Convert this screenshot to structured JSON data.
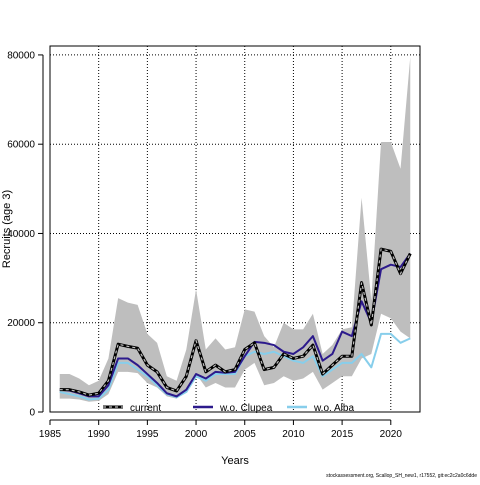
{
  "chart_data": {
    "type": "line",
    "xlabel": "Years",
    "ylabel": "Recruits (age 3)",
    "xlim": [
      1985,
      2023
    ],
    "ylim": [
      0,
      82000
    ],
    "xticks": [
      1985,
      1990,
      1995,
      2000,
      2005,
      2010,
      2015,
      2020
    ],
    "yticks": [
      0,
      20000,
      40000,
      60000,
      80000
    ],
    "grid": true,
    "legend_position": "bottom",
    "footer": "stockassessment.org, Scallop_SH_new1, r17552, git:ec2c2a0c6dde",
    "x": [
      1986,
      1987,
      1988,
      1989,
      1990,
      1991,
      1992,
      1993,
      1994,
      1995,
      1996,
      1997,
      1998,
      1999,
      2000,
      2001,
      2002,
      2003,
      2004,
      2005,
      2006,
      2007,
      2008,
      2009,
      2010,
      2011,
      2012,
      2013,
      2014,
      2015,
      2016,
      2017,
      2018,
      2019,
      2020,
      2021,
      2022
    ],
    "band": {
      "lower": [
        3000,
        3000,
        2800,
        2300,
        2500,
        4000,
        9000,
        9000,
        8700,
        6500,
        5500,
        3500,
        3000,
        4500,
        8500,
        5500,
        6500,
        5500,
        5500,
        9500,
        11000,
        6000,
        6500,
        8000,
        7000,
        7500,
        9000,
        5000,
        6500,
        8000,
        8000,
        12000,
        13000,
        22000,
        21000,
        18000,
        16500
      ],
      "upper": [
        8500,
        8500,
        7500,
        6000,
        7000,
        12000,
        25500,
        24500,
        24000,
        17500,
        15500,
        8000,
        7000,
        14000,
        27500,
        14000,
        16500,
        14000,
        14500,
        23000,
        22500,
        17000,
        14500,
        20000,
        18500,
        18500,
        22000,
        13000,
        15000,
        18500,
        19000,
        48000,
        25000,
        60500,
        60500,
        54500,
        79500
      ]
    },
    "series": [
      {
        "name": "current",
        "color": "#000000",
        "style": "dashed-on-grey",
        "values": [
          5000,
          5000,
          4500,
          3800,
          4200,
          7000,
          15200,
          14700,
          14300,
          10500,
          9000,
          5500,
          4700,
          8000,
          16000,
          9000,
          10500,
          9000,
          9500,
          14000,
          15500,
          9500,
          10000,
          13000,
          12000,
          12500,
          15000,
          8500,
          10500,
          12500,
          12500,
          29000,
          19500,
          36500,
          36000,
          31000,
          35500
        ]
      },
      {
        "name": "w.o. Clupea",
        "color": "#2c1a8c",
        "style": "solid",
        "values": [
          5000,
          4800,
          4200,
          3500,
          3500,
          6000,
          12000,
          12000,
          10500,
          8500,
          6500,
          4200,
          3500,
          5000,
          8500,
          7500,
          9000,
          8800,
          9000,
          12500,
          15700,
          15500,
          15000,
          13500,
          13000,
          14500,
          17000,
          11500,
          13000,
          18000,
          17000,
          24800,
          20000,
          32000,
          33000,
          32500,
          35500
        ]
      },
      {
        "name": "w.o. Alba",
        "color": "#87ceeb",
        "style": "solid",
        "values": [
          4500,
          4000,
          3500,
          2800,
          3000,
          5000,
          11000,
          11000,
          9500,
          8000,
          6000,
          4000,
          3300,
          4500,
          8000,
          7000,
          8500,
          8500,
          8500,
          12500,
          13500,
          13000,
          13500,
          12500,
          11500,
          11000,
          12500,
          8000,
          9500,
          11000,
          11000,
          13000,
          10000,
          17500,
          17500,
          15500,
          16500
        ]
      }
    ]
  }
}
